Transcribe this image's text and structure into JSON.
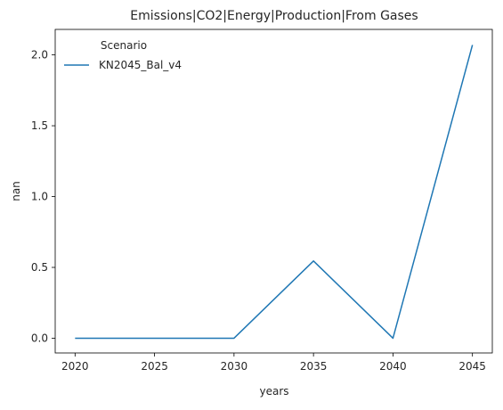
{
  "chart_data": {
    "type": "line",
    "title": "Emissions|CO2|Energy|Production|From Gases",
    "xlabel": "years",
    "ylabel": "nan",
    "x": [
      2020,
      2025,
      2030,
      2035,
      2040,
      2045
    ],
    "xticks": [
      "2020",
      "2025",
      "2030",
      "2035",
      "2040",
      "2045"
    ],
    "yticks": [
      "0.0",
      "0.5",
      "1.0",
      "1.5",
      "2.0"
    ],
    "xlim": [
      2018.75,
      2046.25
    ],
    "ylim": [
      -0.104,
      2.18
    ],
    "grid": false,
    "legend": {
      "title": "Scenario",
      "placement": "upper-left"
    },
    "series": [
      {
        "name": "KN2045_Bal_v4",
        "color": "#1f77b4",
        "x": [
          2020,
          2025,
          2030,
          2035,
          2040,
          2045
        ],
        "values": [
          0.0,
          0.0,
          0.0,
          0.545,
          0.0,
          2.07
        ]
      }
    ]
  }
}
